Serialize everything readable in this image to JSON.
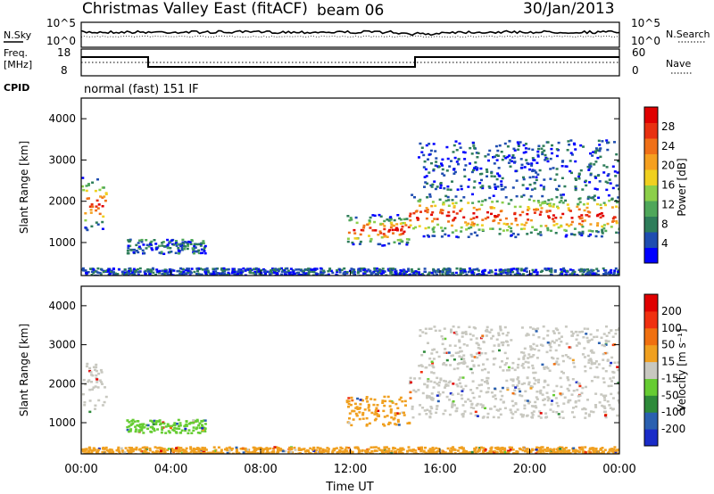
{
  "header": {
    "title": "Christmas Valley East (fitACF)",
    "beam": "beam 06",
    "date": "30/Jan/2013"
  },
  "noise_panel": {
    "left_label": "N.Sky",
    "left_ticks": [
      "10^5",
      "10^0"
    ],
    "right_ticks": [
      "10^5",
      "10^0"
    ],
    "right_label": "N.Search"
  },
  "freq_panel": {
    "left_label_1": "Freq.",
    "left_label_2": "[MHz]",
    "left_ticks": [
      "18",
      "8"
    ],
    "right_ticks": [
      "60",
      "0"
    ],
    "right_label": "Nave",
    "cpid_label": "CPID",
    "cpid_value": "normal (fast) 151 IF"
  },
  "chart_data": [
    {
      "type": "heatmap",
      "name": "power",
      "ylabel": "Slant Range [km]",
      "yticks": [
        "1000",
        "2000",
        "3000",
        "4000"
      ],
      "ylim": [
        200,
        4500
      ],
      "xlim_hours": [
        0,
        24
      ],
      "colorbar": {
        "label": "Power [dB]",
        "ticks": [
          "4",
          "8",
          "12",
          "16",
          "20",
          "24",
          "28"
        ],
        "colors": [
          "#0000ff",
          "#1f4db0",
          "#2e7d5a",
          "#4fa75a",
          "#8ccf4a",
          "#f0d020",
          "#f5a020",
          "#f07018",
          "#e83010",
          "#e00000"
        ]
      },
      "echo_regions": [
        {
          "t0": 0.0,
          "t1": 1.1,
          "r0": 1300,
          "r1": 2600,
          "level": "high"
        },
        {
          "t0": 2.0,
          "t1": 5.5,
          "r0": 750,
          "r1": 1100,
          "level": "medium"
        },
        {
          "t0": 11.8,
          "t1": 14.6,
          "r0": 950,
          "r1": 1700,
          "level": "high"
        },
        {
          "t0": 14.6,
          "t1": 24.0,
          "r0": 1150,
          "r1": 2200,
          "level": "high"
        },
        {
          "t0": 15.0,
          "t1": 24.0,
          "r0": 2300,
          "r1": 3500,
          "level": "low"
        },
        {
          "t0": 0.0,
          "t1": 24.0,
          "r0": 200,
          "r1": 400,
          "level": "low"
        }
      ]
    },
    {
      "type": "heatmap",
      "name": "velocity",
      "ylabel": "Slant Range [km]",
      "yticks": [
        "1000",
        "2000",
        "3000",
        "4000"
      ],
      "ylim": [
        200,
        4500
      ],
      "xlim_hours": [
        0,
        24
      ],
      "xticks": [
        "00:00",
        "04:00",
        "08:00",
        "12:00",
        "16:00",
        "20:00",
        "00:00"
      ],
      "xlabel": "Time UT",
      "colorbar": {
        "label": "Velocity [m s⁻¹]",
        "ticks": [
          "200",
          "100",
          "50",
          "15",
          "-15",
          "-50",
          "-100",
          "-200"
        ],
        "colors": [
          "#1a2cc8",
          "#2a60b0",
          "#2e8a3a",
          "#66cc33",
          "#c8c8c0",
          "#f0a020",
          "#f07010",
          "#f03010",
          "#e00000"
        ]
      },
      "echo_regions": [
        {
          "t0": 0.0,
          "t1": 1.1,
          "r0": 1300,
          "r1": 2600,
          "level": "gray"
        },
        {
          "t0": 2.0,
          "t1": 5.5,
          "r0": 750,
          "r1": 1100,
          "level": "green"
        },
        {
          "t0": 11.8,
          "t1": 14.6,
          "r0": 950,
          "r1": 1700,
          "level": "orange"
        },
        {
          "t0": 14.6,
          "t1": 24.0,
          "r0": 1150,
          "r1": 2200,
          "level": "gray"
        },
        {
          "t0": 15.0,
          "t1": 24.0,
          "r0": 2300,
          "r1": 3500,
          "level": "gray"
        },
        {
          "t0": 0.0,
          "t1": 24.0,
          "r0": 200,
          "r1": 400,
          "level": "orange"
        }
      ]
    }
  ]
}
